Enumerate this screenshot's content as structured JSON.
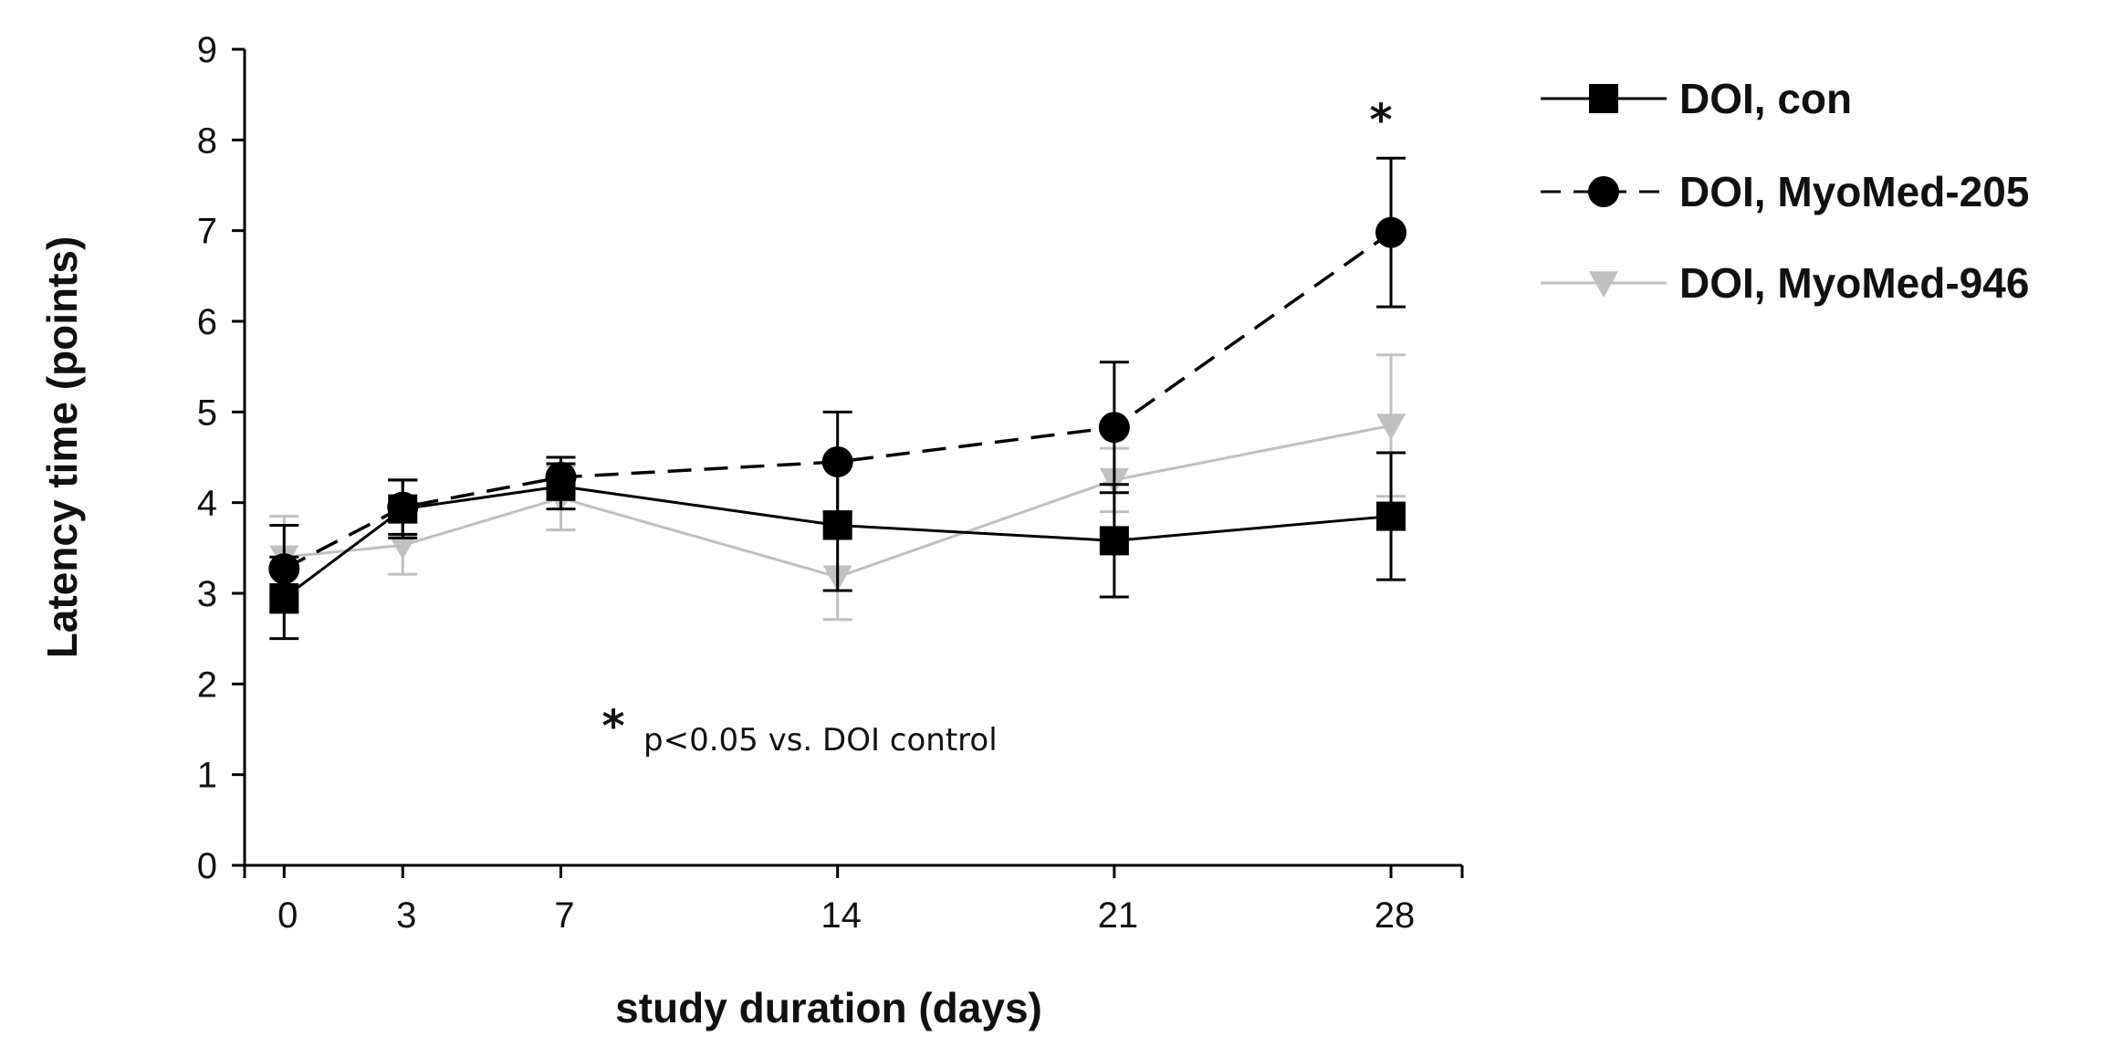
{
  "chart_data": {
    "type": "line",
    "title": "",
    "xlabel": "study duration (days)",
    "ylabel": "Latency time (points)",
    "x": [
      0,
      3,
      7,
      14,
      21,
      28
    ],
    "x_ticks": [
      "0",
      "3",
      "7",
      "14",
      "21",
      "28"
    ],
    "xlim": [
      -1,
      29.8
    ],
    "ylim": [
      0,
      9
    ],
    "y_ticks": [
      "0",
      "1",
      "2",
      "3",
      "4",
      "5",
      "6",
      "7",
      "8",
      "9"
    ],
    "grid": false,
    "legend_position": "top-right",
    "series": [
      {
        "name": "DOI, con",
        "marker": "square",
        "line_style": "solid",
        "color": "#000000",
        "values": [
          2.95,
          3.93,
          4.18,
          3.75,
          3.58,
          3.85
        ],
        "error": [
          0.45,
          0.32,
          0.25,
          0.72,
          0.62,
          0.7
        ]
      },
      {
        "name": "DOI, MyoMed-205",
        "marker": "circle",
        "line_style": "dashed",
        "color": "#000000",
        "values": [
          3.27,
          3.95,
          4.28,
          4.45,
          4.83,
          6.98
        ],
        "error": [
          0.48,
          0.3,
          0.22,
          0.55,
          0.72,
          0.82
        ]
      },
      {
        "name": "DOI, MyoMed-946",
        "marker": "triangle-down",
        "line_style": "solid",
        "color": "#c0c0c0",
        "values": [
          3.4,
          3.53,
          4.05,
          3.18,
          4.25,
          4.85
        ],
        "error": [
          0.45,
          0.32,
          0.35,
          0.47,
          0.35,
          0.78
        ]
      }
    ],
    "annotations": {
      "significance_marker": "*",
      "footnote_star": "*",
      "footnote_text": "p<0.05 vs. DOI control"
    }
  }
}
